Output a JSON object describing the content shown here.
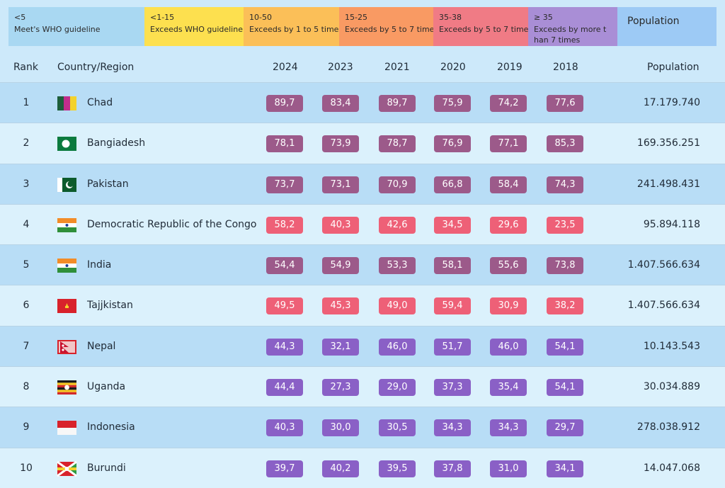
{
  "legend": [
    {
      "range": "<5",
      "desc": "Meet's WHO guideline",
      "color": "#a9d8f2"
    },
    {
      "range": "<1-15",
      "desc": "Exceeds WHO guideline",
      "color": "#fde04f"
    },
    {
      "range": "10-50",
      "desc": "Exceeds by 1 to 5 times",
      "color": "#fbbf58"
    },
    {
      "range": "15-25",
      "desc": "Exceeds by 5 to 7 times",
      "color": "#f99a63"
    },
    {
      "range": "35-38",
      "desc": "Exceeds by 5 to 7 times",
      "color": "#f07b85"
    },
    {
      "range": "≥ 35",
      "desc": "Exceeds by more t han 7 times",
      "color": "#a98ed6"
    },
    {
      "range": "",
      "desc": "Population",
      "color": "#9dcaf5"
    }
  ],
  "header": {
    "rank": "Rank",
    "country": "Country/Region",
    "years": [
      "2024",
      "2023",
      "2021",
      "2020",
      "2019",
      "2018"
    ],
    "population": "Population"
  },
  "colors": {
    "plum": "#9c5a8a",
    "pink": "#ee6077",
    "violet": "#8a60c6"
  },
  "rows": [
    {
      "rank": "1",
      "country": "Chad",
      "flag": "chad-flag-icon",
      "values": [
        "89,7",
        "83,4",
        "89,7",
        "75,9",
        "74,2",
        "77,6"
      ],
      "tones": [
        "plum",
        "plum",
        "plum",
        "plum",
        "plum",
        "plum"
      ],
      "population": "17.179.740"
    },
    {
      "rank": "2",
      "country": "Bangiadesh",
      "flag": "bangladesh-flag-icon",
      "values": [
        "78,1",
        "73,9",
        "78,7",
        "76,9",
        "77,1",
        "85,3"
      ],
      "tones": [
        "plum",
        "plum",
        "plum",
        "plum",
        "plum",
        "plum"
      ],
      "population": "169.356.251"
    },
    {
      "rank": "3",
      "country": "Pakistan",
      "flag": "pakistan-flag-icon",
      "values": [
        "73,7",
        "73,1",
        "70,9",
        "66,8",
        "58,4",
        "74,3"
      ],
      "tones": [
        "plum",
        "plum",
        "plum",
        "plum",
        "plum",
        "plum"
      ],
      "population": "241.498.431"
    },
    {
      "rank": "4",
      "country": "Democratic Republic of the Congo",
      "flag": "india-style-flag-icon",
      "values": [
        "58,2",
        "40,3",
        "42,6",
        "34,5",
        "29,6",
        "23,5"
      ],
      "tones": [
        "pink",
        "pink",
        "pink",
        "pink",
        "pink",
        "pink"
      ],
      "population": "95.894.118"
    },
    {
      "rank": "5",
      "country": "India",
      "flag": "india-flag-icon",
      "values": [
        "54,4",
        "54,9",
        "53,3",
        "58,1",
        "55,6",
        "73,8"
      ],
      "tones": [
        "plum",
        "plum",
        "plum",
        "plum",
        "plum",
        "plum"
      ],
      "population": "1.407.566.634"
    },
    {
      "rank": "6",
      "country": "Tajjkistan",
      "flag": "red-flag-icon",
      "values": [
        "49,5",
        "45,3",
        "49,0",
        "59,4",
        "30,9",
        "38,2"
      ],
      "tones": [
        "pink",
        "pink",
        "pink",
        "pink",
        "pink",
        "pink"
      ],
      "population": "1.407.566.634"
    },
    {
      "rank": "7",
      "country": "Nepal",
      "flag": "nepal-flag-icon",
      "values": [
        "44,3",
        "32,1",
        "46,0",
        "51,7",
        "46,0",
        "54,1"
      ],
      "tones": [
        "violet",
        "violet",
        "violet",
        "violet",
        "violet",
        "violet"
      ],
      "population": "10.143.543"
    },
    {
      "rank": "8",
      "country": "Uganda",
      "flag": "uganda-flag-icon",
      "values": [
        "44,4",
        "27,3",
        "29,0",
        "37,3",
        "35,4",
        "54,1"
      ],
      "tones": [
        "violet",
        "violet",
        "violet",
        "violet",
        "violet",
        "violet"
      ],
      "population": "30.034.889"
    },
    {
      "rank": "9",
      "country": "Indonesia",
      "flag": "indonesia-flag-icon",
      "values": [
        "40,3",
        "30,0",
        "30,5",
        "34,3",
        "34,3",
        "29,7"
      ],
      "tones": [
        "violet",
        "violet",
        "violet",
        "violet",
        "violet",
        "violet"
      ],
      "population": "278.038.912"
    },
    {
      "rank": "10",
      "country": "Burundi",
      "flag": "burundi-flag-icon",
      "values": [
        "39,7",
        "40,2",
        "39,5",
        "37,8",
        "31,0",
        "34,1"
      ],
      "tones": [
        "violet",
        "violet",
        "violet",
        "violet",
        "violet",
        "violet"
      ],
      "population": "14.047.068"
    }
  ]
}
